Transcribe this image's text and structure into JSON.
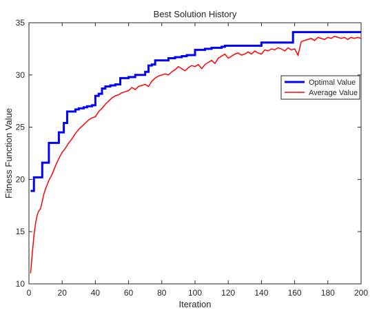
{
  "chart_data": {
    "type": "line",
    "title": "Best Solution History",
    "xlabel": "Iteration",
    "ylabel": "Fitness Function Value",
    "xlim": [
      0,
      200
    ],
    "ylim": [
      10,
      35
    ],
    "xticks": [
      0,
      20,
      40,
      60,
      80,
      100,
      120,
      140,
      160,
      180,
      200
    ],
    "yticks": [
      10,
      15,
      20,
      25,
      30,
      35
    ],
    "grid": false,
    "legend_position": "right",
    "series": [
      {
        "name": "Optimal Value",
        "color": "#0000ff",
        "style": "step",
        "x": [
          1,
          3,
          5,
          8,
          10,
          12,
          16,
          18,
          21,
          23,
          25,
          28,
          30,
          33,
          35,
          38,
          40,
          42,
          44,
          46,
          49,
          52,
          55,
          60,
          64,
          70,
          72,
          74,
          76,
          84,
          88,
          92,
          95,
          100,
          106,
          110,
          116,
          118,
          130,
          140,
          152,
          159,
          170,
          180,
          190,
          200
        ],
        "y": [
          18.9,
          20.2,
          20.2,
          21.6,
          21.6,
          23.5,
          23.5,
          24.5,
          25.4,
          26.5,
          26.5,
          26.7,
          26.8,
          26.9,
          27.0,
          27.1,
          28.0,
          28.2,
          28.7,
          28.9,
          29.0,
          29.1,
          29.7,
          29.8,
          30.0,
          30.3,
          30.9,
          31.0,
          31.4,
          31.6,
          31.7,
          31.8,
          31.9,
          32.4,
          32.5,
          32.6,
          32.7,
          32.8,
          32.8,
          33.1,
          33.1,
          34.1,
          34.1,
          34.1,
          34.1,
          34.1
        ]
      },
      {
        "name": "Average Value",
        "color": "#ff0000",
        "style": "line",
        "x": [
          1,
          2,
          3,
          4,
          5,
          6,
          7,
          8,
          9,
          10,
          12,
          14,
          16,
          18,
          20,
          22,
          24,
          26,
          28,
          30,
          32,
          34,
          36,
          38,
          40,
          42,
          44,
          46,
          48,
          50,
          52,
          54,
          56,
          58,
          60,
          62,
          64,
          66,
          68,
          70,
          72,
          74,
          76,
          78,
          80,
          82,
          84,
          86,
          88,
          90,
          92,
          94,
          96,
          98,
          100,
          102,
          104,
          106,
          108,
          110,
          112,
          114,
          116,
          118,
          120,
          122,
          124,
          126,
          128,
          130,
          132,
          134,
          136,
          138,
          140,
          142,
          144,
          146,
          148,
          150,
          152,
          154,
          156,
          158,
          160,
          162,
          164,
          166,
          168,
          170,
          172,
          174,
          176,
          178,
          180,
          182,
          184,
          186,
          188,
          190,
          192,
          194,
          196,
          198,
          200
        ],
        "y": [
          11.0,
          12.9,
          14.6,
          15.8,
          16.6,
          17.0,
          17.2,
          17.9,
          18.6,
          19.1,
          19.9,
          20.5,
          21.3,
          22.0,
          22.6,
          23.0,
          23.5,
          23.9,
          24.4,
          24.8,
          25.1,
          25.4,
          25.7,
          25.9,
          26.0,
          26.5,
          26.8,
          27.2,
          27.5,
          27.8,
          28.0,
          28.1,
          28.3,
          28.4,
          28.5,
          28.8,
          28.6,
          28.9,
          29.0,
          29.1,
          28.9,
          29.4,
          29.7,
          29.9,
          30.0,
          30.1,
          30.0,
          30.3,
          30.5,
          30.8,
          30.6,
          30.4,
          30.7,
          30.9,
          30.8,
          31.0,
          30.6,
          31.0,
          31.2,
          31.4,
          31.1,
          31.6,
          31.8,
          32.0,
          31.6,
          31.8,
          32.0,
          32.1,
          31.9,
          32.0,
          32.2,
          32.0,
          32.3,
          32.1,
          32.0,
          32.4,
          32.3,
          32.5,
          32.4,
          32.6,
          32.5,
          32.3,
          32.6,
          32.4,
          32.5,
          31.9,
          33.2,
          33.3,
          33.4,
          33.5,
          33.3,
          33.6,
          33.5,
          33.4,
          33.6,
          33.5,
          33.7,
          33.6,
          33.5,
          33.6,
          33.4,
          33.6,
          33.5,
          33.6,
          33.5
        ]
      }
    ]
  }
}
